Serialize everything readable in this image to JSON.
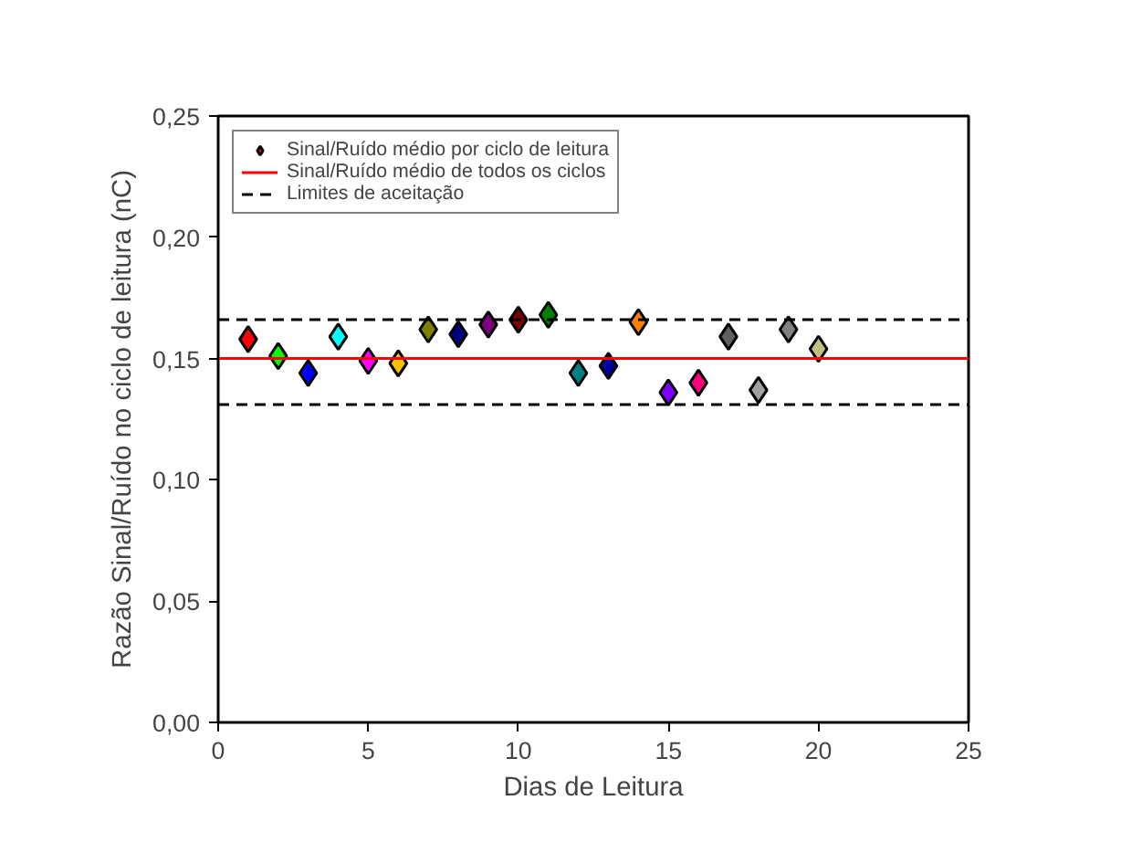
{
  "chart_data": {
    "type": "scatter",
    "xlabel": "Dias de Leitura",
    "ylabel": "Razão Sinal/Ruído no ciclo de leitura (nC)",
    "x": [
      1,
      2,
      3,
      4,
      5,
      6,
      7,
      8,
      9,
      10,
      11,
      12,
      13,
      14,
      15,
      16,
      17,
      18,
      19,
      20
    ],
    "series": [
      {
        "name": "Sinal/Ruído médio por ciclo de leitura",
        "color": "#ff0000",
        "values": [
          0.158,
          0.151,
          0.144,
          0.159,
          0.149,
          0.148,
          0.162,
          0.16,
          0.164,
          0.166,
          0.168,
          0.144,
          0.147,
          0.165,
          0.136,
          0.14,
          0.159,
          0.137,
          0.162,
          0.154
        ],
        "colors": [
          "#ff0000",
          "#00ff00",
          "#0000ff",
          "#00ffff",
          "#ff00ff",
          "#ffc000",
          "#808000",
          "#000080",
          "#800080",
          "#800000",
          "#008000",
          "#008080",
          "#0000a0",
          "#ff8000",
          "#8000ff",
          "#ff0080",
          "#606060",
          "#a0a0a0",
          "#808080",
          "#c0c080"
        ]
      }
    ],
    "marker": "diamond",
    "ref_lines": [
      {
        "axis": "y",
        "value": 0.15,
        "label": "Sinal/Ruído médio de todos os ciclos",
        "color": "#ff0000",
        "line_style": "solid"
      },
      {
        "axis": "y",
        "value": 0.166,
        "label": "Limites de aceitação",
        "color": "#000000",
        "line_style": "dashed"
      },
      {
        "axis": "y",
        "value": 0.131,
        "label": null,
        "color": "#000000",
        "line_style": "dashed"
      }
    ],
    "xlim": [
      0,
      25
    ],
    "xticks": [
      0,
      5,
      10,
      15,
      20,
      25
    ],
    "ylim": [
      0,
      0.25
    ],
    "yticks": [
      {
        "value": 0,
        "label": "0,00"
      },
      {
        "value": 0.05,
        "label": "0,05"
      },
      {
        "value": 0.1,
        "label": "0,10"
      },
      {
        "value": 0.15,
        "label": "0,15"
      },
      {
        "value": 0.2,
        "label": "0,20"
      },
      {
        "value": 0.25,
        "label": "0,25"
      }
    ],
    "grid": false,
    "legend": "top left"
  }
}
